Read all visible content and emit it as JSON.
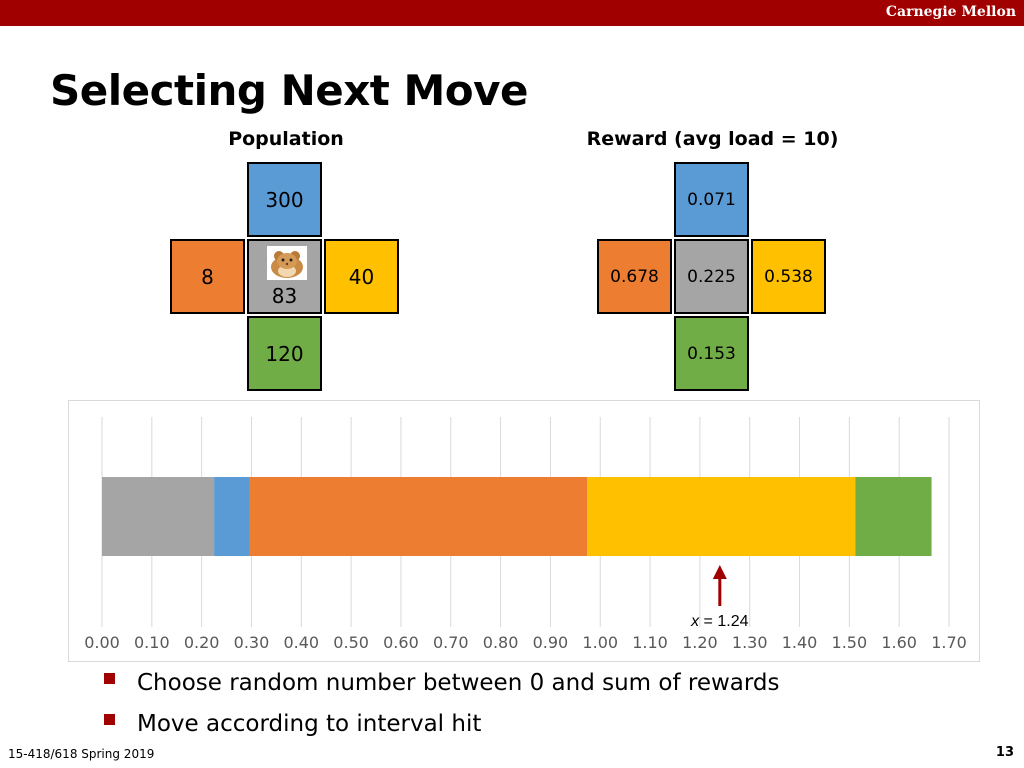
{
  "header": {
    "org": "Carnegie Mellon"
  },
  "title": "Selecting Next Move",
  "population": {
    "title": "Population",
    "north": "300",
    "west": "8",
    "center": "83",
    "east": "40",
    "south": "120"
  },
  "reward": {
    "title": "Reward (avg load = 10)",
    "north": "0.071",
    "west": "0.678",
    "center": "0.225",
    "east": "0.538",
    "south": "0.153"
  },
  "colors": {
    "north": "#5b9bd5",
    "west": "#ed7d31",
    "center": "#a5a5a5",
    "east": "#ffc000",
    "south": "#70ad47",
    "accent": "#a00000"
  },
  "chart_data": {
    "type": "bar",
    "orientation": "horizontal-stacked",
    "segments": [
      {
        "value": 0.225,
        "color": "#a5a5a5"
      },
      {
        "value": 0.071,
        "color": "#5b9bd5"
      },
      {
        "value": 0.678,
        "color": "#ed7d31"
      },
      {
        "value": 0.538,
        "color": "#ffc000"
      },
      {
        "value": 0.153,
        "color": "#70ad47"
      }
    ],
    "xlim": [
      0,
      1.7
    ],
    "xticks": [
      "0.00",
      "0.10",
      "0.20",
      "0.30",
      "0.40",
      "0.50",
      "0.60",
      "0.70",
      "0.80",
      "0.90",
      "1.00",
      "1.10",
      "1.20",
      "1.30",
      "1.40",
      "1.50",
      "1.60",
      "1.70"
    ],
    "grid": true,
    "annotation": {
      "x": 1.24,
      "label_var": "x",
      "label_rest": " = 1.24",
      "color": "#a00000"
    }
  },
  "bullets": [
    "Choose random number between 0 and sum of rewards",
    "Move according to interval hit"
  ],
  "footer": {
    "course": "15-418/618 Spring 2019",
    "page": "13"
  }
}
